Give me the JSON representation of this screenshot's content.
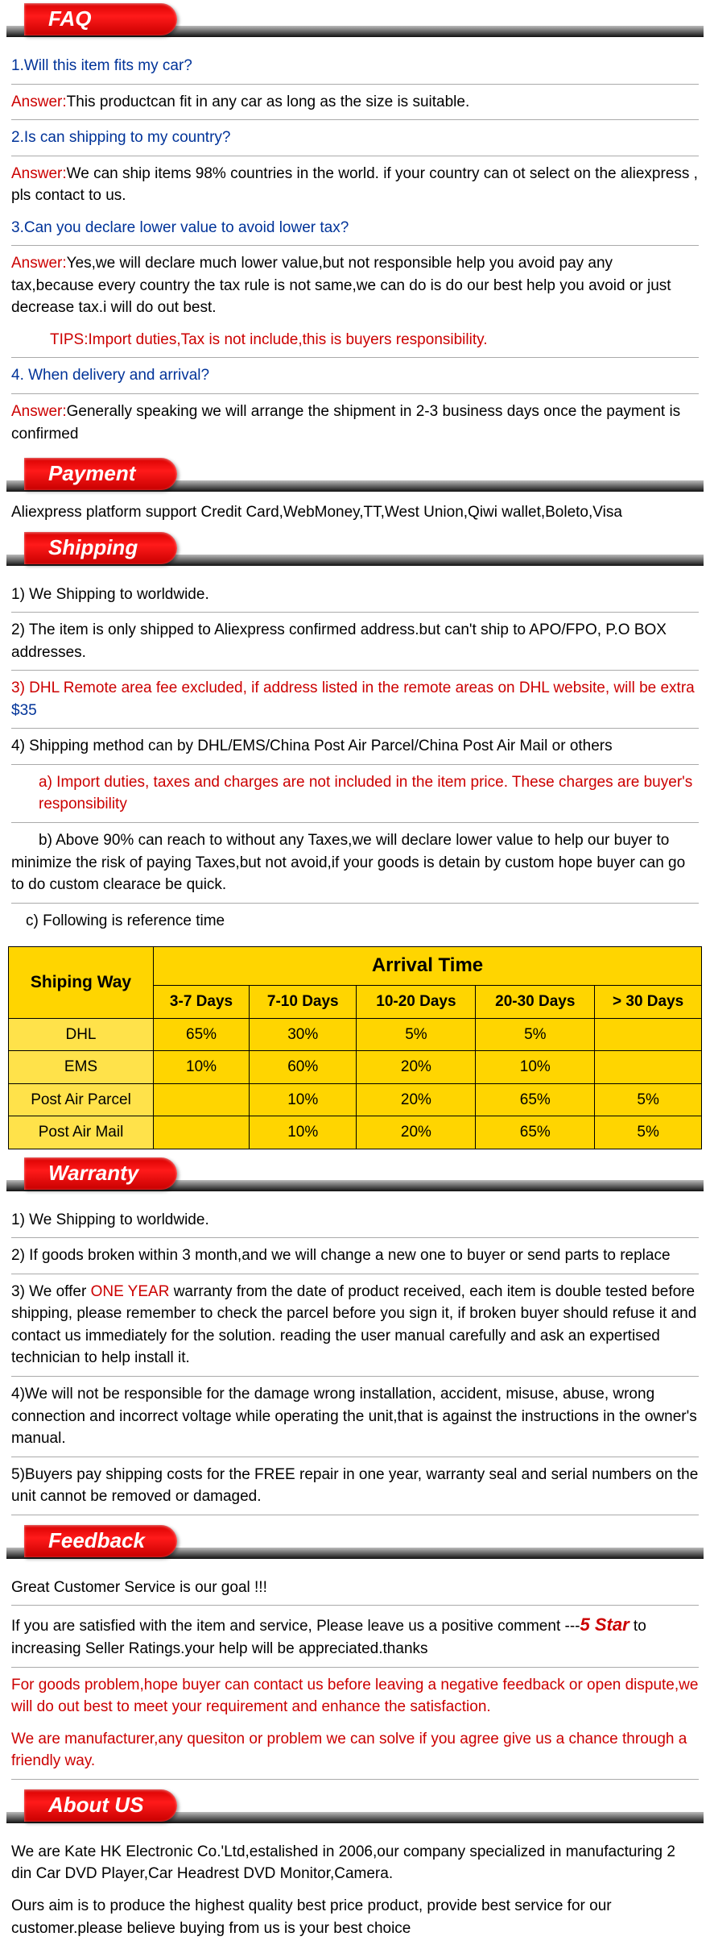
{
  "sections": {
    "faq": "FAQ",
    "payment": "Payment",
    "shipping": "Shipping",
    "warranty": "Warranty",
    "feedback": "Feedback",
    "about": "About US"
  },
  "faq": {
    "q1": "1.Will this item fits my car?",
    "ans_label": "Answer:",
    "a1": "This productcan fit in any car as long as the size is suitable.",
    "q2": "2.Is can shipping to my country?",
    "a2": "We can ship items 98% countries in the world. if your country can ot select on the aliexpress , pls contact to us.",
    "q3": "3.Can you declare lower value to avoid lower tax?",
    "a3": "Yes,we will declare much lower value,but not responsible help you avoid pay any tax,because every country the tax rule is not same,we can do is do our best help you avoid or just decrease tax.i will do out best.",
    "tips": "TIPS:Import duties,Tax is not include,this is buyers responsibility.",
    "q4": "4. When delivery and arrival?",
    "a4": "Generally speaking we will arrange the shipment in 2-3 business days once the payment is confirmed"
  },
  "payment": {
    "text": "Aliexpress platform support Credit Card,WebMoney,TT,West Union,Qiwi wallet,Boleto,Visa"
  },
  "shipping": {
    "l1": "1) We Shipping to worldwide.",
    "l2": "2) The item is only shipped to Aliexpress confirmed address.but can't ship to APO/FPO, P.O BOX addresses.",
    "l3a": "3) DHL Remote area fee excluded, if address listed in the remote areas on DHL website, will be extra",
    "l3b": "$35",
    "l4": "4) Shipping method can by DHL/EMS/China Post Air Parcel/China Post Air Mail or others",
    "la": "a) Import duties, taxes and charges are not included in the item price. These charges are buyer's responsibility",
    "lb": "b) Above 90% can reach to without any Taxes,we will declare lower value to help our buyer to minimize the risk of paying Taxes,but not avoid,if your goods is detain by custom hope buyer can go to do custom clearace be quick.",
    "lc": "c) Following is reference time"
  },
  "shiptable": {
    "col1_header": "Shiping Way",
    "arrival_header": "Arrival Time",
    "cols": [
      "3-7 Days",
      "7-10 Days",
      "10-20 Days",
      "20-30 Days",
      "> 30 Days"
    ],
    "rows": [
      {
        "way": "DHL",
        "v": [
          "65%",
          "30%",
          "5%",
          "5%",
          ""
        ]
      },
      {
        "way": "EMS",
        "v": [
          "10%",
          "60%",
          "20%",
          "10%",
          ""
        ]
      },
      {
        "way": "Post Air Parcel",
        "v": [
          "",
          "10%",
          "20%",
          "65%",
          "5%"
        ]
      },
      {
        "way": "Post Air Mail",
        "v": [
          "",
          "10%",
          "20%",
          "65%",
          "5%"
        ]
      }
    ],
    "styling": {
      "header_bg": "#ffd500",
      "way_bg": "#ffe24a",
      "cell_bg": "#ffd500",
      "border_color": "#000000",
      "header_fontsize": 22,
      "cell_fontsize": 19
    }
  },
  "warranty": {
    "w1": "1) We Shipping to worldwide.",
    "w2": "2) If goods broken within 3 month,and we will change a new one to buyer or send parts to replace",
    "w3a": "3) We offer ",
    "w3_red": "ONE YEAR",
    "w3b": " warranty from the date of product received, each item is double tested before shipping, please remember to check the parcel before you sign it, if broken buyer should refuse it and contact us immediately for the solution. reading the user manual carefully and ask an expertised technician to help install it.",
    "w4": "4)We will not be responsible for the damage wrong installation, accident, misuse, abuse, wrong connection and incorrect voltage while operating the unit,that is against the instructions in the owner's manual.",
    "w5": "5)Buyers pay shipping costs for the FREE repair in one year, warranty seal and serial numbers on the unit cannot be removed or damaged."
  },
  "feedback": {
    "f1": "Great Customer Service is our goal !!!",
    "f2a": "If you are satisfied with the item and service, Please leave us a positive comment ---",
    "f2_star": "5 Star",
    "f2b": "  to increasing Seller Ratings.your help will be appreciated.thanks",
    "f3": "For goods problem,hope buyer can contact us before leaving a negative feedback or open dispute,we will do out best to meet your requirement and enhance the satisfaction.",
    "f4": "We are manufacturer,any quesiton or problem we can solve if you agree give us a chance through a friendly way."
  },
  "about": {
    "a1": "We are Kate HK Electronic Co.'Ltd,estalished in 2006,our company specialized in manufacturing 2 din Car DVD Player,Car Headrest DVD Monitor,Camera.",
    "a2": "Ours aim is to produce the highest quality best price product, provide best service for our customer.please believe buying from us is your best choice"
  },
  "colors": {
    "tab_red": "#e00000",
    "link_blue": "#003399",
    "text_red": "#cc0000",
    "bar_dark": "#222222"
  }
}
